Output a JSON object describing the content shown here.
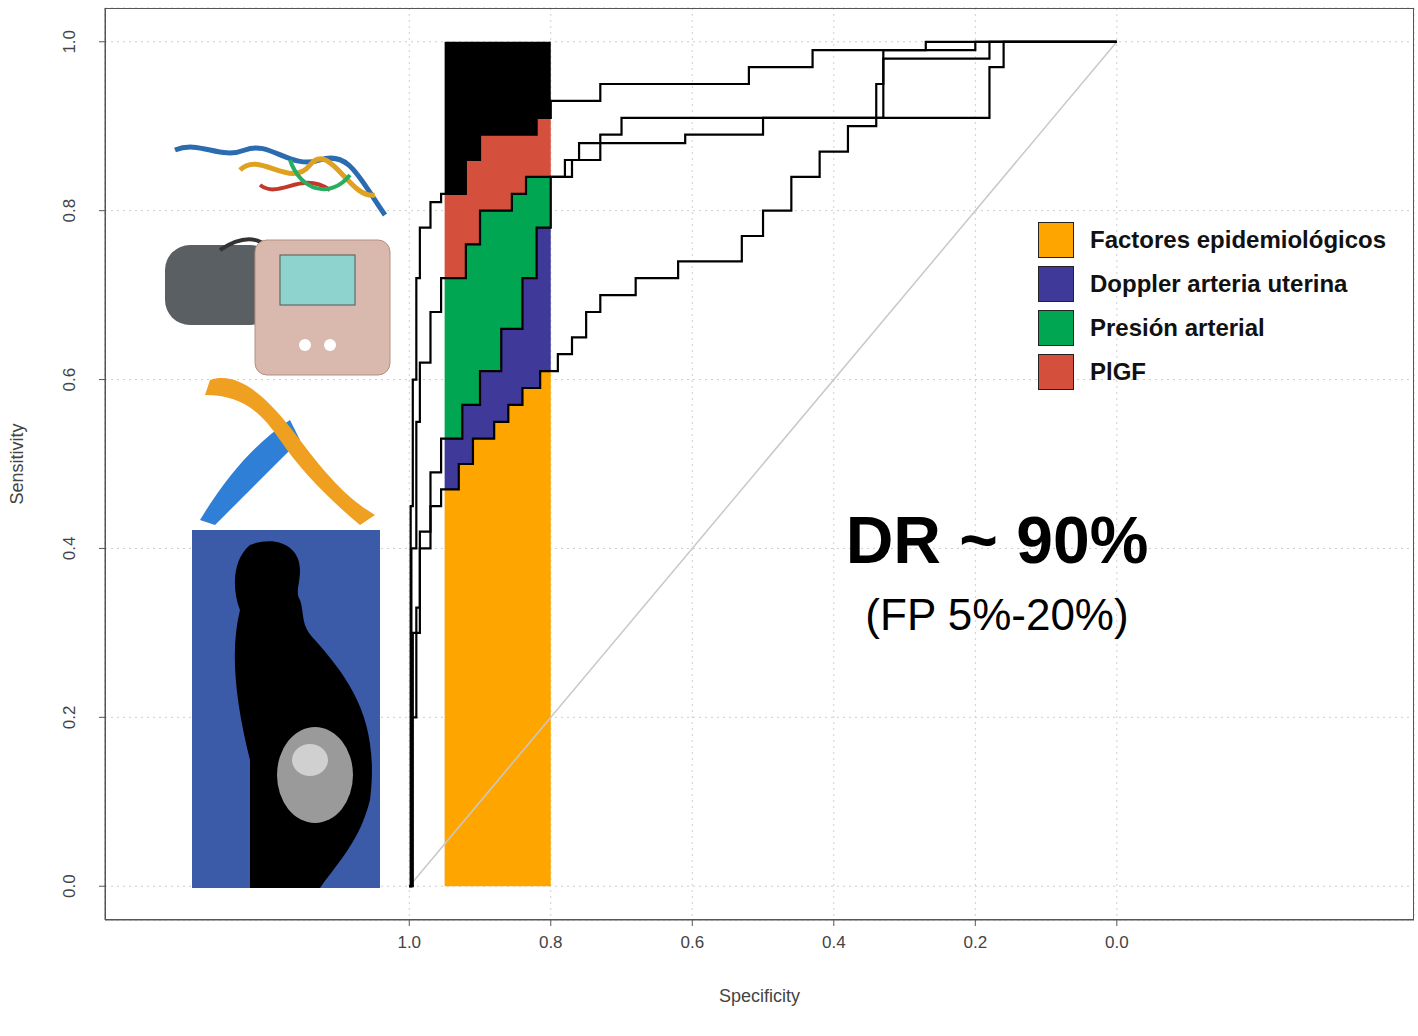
{
  "chart_data": {
    "type": "line",
    "xlabel": "Specificity",
    "ylabel": "Sensitivity",
    "xlim": [
      1.43,
      -0.42
    ],
    "ylim": [
      -0.04,
      1.04
    ],
    "xticks": [
      {
        "value": 1,
        "label": "1.0"
      },
      0.8,
      0.6,
      0.4,
      0.2,
      {
        "value": 0,
        "label": "0.0"
      }
    ],
    "yticks": [
      {
        "value": 0,
        "label": "0.0"
      },
      0.2,
      0.4,
      0.6,
      0.8,
      {
        "value": 1,
        "label": "1.0"
      }
    ],
    "grid": true,
    "legend": "upper right",
    "color": "#000000",
    "window": {
      "x": [
        0.95,
        0.8
      ],
      "y": [
        0,
        1
      ]
    },
    "diagonal": {
      "x": [
        1,
        0
      ],
      "y": [
        0,
        1
      ]
    },
    "annotations": [
      "DR ~ 90%",
      "(FP 5%-20%)"
    ],
    "series": [
      {
        "name": "Factores epidemiológicos",
        "color": "#FFA500",
        "x": [
          1,
          0.997,
          0.99,
          0.985,
          0.97,
          0.955,
          0.93,
          0.91,
          0.88,
          0.86,
          0.84,
          0.815,
          0.79,
          0.77,
          0.75,
          0.73,
          0.68,
          0.62,
          0.53,
          0.5,
          0.46,
          0.42,
          0.38,
          0.34,
          0.33,
          0.18,
          0
        ],
        "values": [
          0,
          0.2,
          0.33,
          0.4,
          0.45,
          0.47,
          0.5,
          0.53,
          0.55,
          0.57,
          0.59,
          0.61,
          0.63,
          0.65,
          0.68,
          0.7,
          0.72,
          0.74,
          0.77,
          0.8,
          0.84,
          0.87,
          0.9,
          0.95,
          0.98,
          1,
          1
        ]
      },
      {
        "name": "Doppler arteria uterina",
        "color": "#3F3A9A",
        "x": [
          1,
          0.995,
          0.985,
          0.97,
          0.955,
          0.925,
          0.9,
          0.87,
          0.84,
          0.82,
          0.8,
          0.78,
          0.76,
          0.61,
          0.5,
          0.18,
          0.16,
          0
        ],
        "values": [
          0,
          0.3,
          0.42,
          0.49,
          0.53,
          0.57,
          0.61,
          0.66,
          0.72,
          0.78,
          0.84,
          0.86,
          0.88,
          0.89,
          0.91,
          0.97,
          1,
          1
        ]
      },
      {
        "name": "Presión arterial",
        "color": "#00A651",
        "x": [
          1,
          0.997,
          0.99,
          0.985,
          0.97,
          0.955,
          0.92,
          0.9,
          0.855,
          0.835,
          0.77,
          0.73,
          0.7,
          0.33,
          0.2,
          0
        ],
        "values": [
          0,
          0.4,
          0.55,
          0.62,
          0.68,
          0.72,
          0.76,
          0.8,
          0.82,
          0.84,
          0.86,
          0.89,
          0.91,
          0.99,
          1,
          1
        ]
      },
      {
        "name": "PlGF",
        "color": "#D4503C",
        "x": [
          1,
          0.998,
          0.995,
          0.99,
          0.985,
          0.97,
          0.955,
          0.92,
          0.9,
          0.82,
          0.8,
          0.73,
          0.52,
          0.43,
          0.27,
          0
        ],
        "values": [
          0,
          0.45,
          0.6,
          0.72,
          0.78,
          0.81,
          0.82,
          0.86,
          0.89,
          0.91,
          0.93,
          0.95,
          0.97,
          0.99,
          1,
          1
        ]
      }
    ]
  }
}
